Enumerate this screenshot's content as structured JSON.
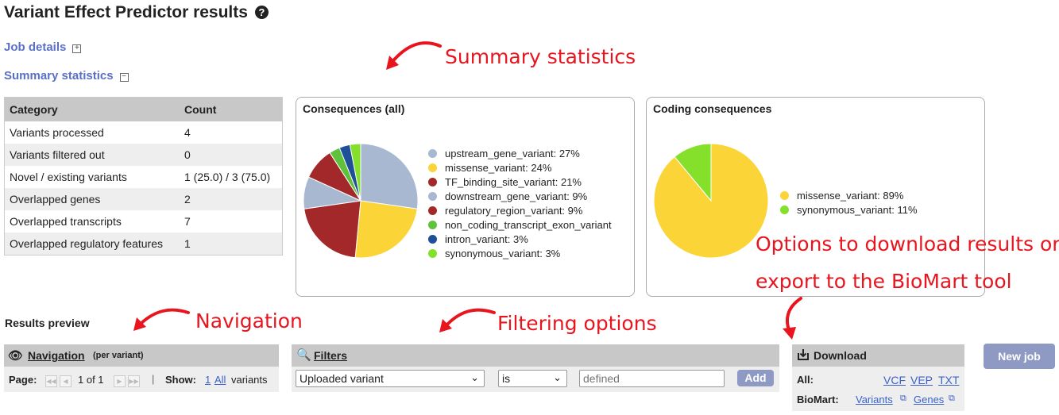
{
  "page_title": "Variant Effect Predictor results",
  "help_icon": "question-circle-icon",
  "sections": {
    "job_details": "Job details",
    "summary_statistics": "Summary statistics"
  },
  "stats_table": {
    "headers": [
      "Category",
      "Count"
    ],
    "rows": [
      [
        "Variants processed",
        "4"
      ],
      [
        "Variants filtered out",
        "0"
      ],
      [
        "Novel / existing variants",
        "1 (25.0) / 3 (75.0)"
      ],
      [
        "Overlapped genes",
        "2"
      ],
      [
        "Overlapped transcripts",
        "7"
      ],
      [
        "Overlapped regulatory features",
        "1"
      ]
    ]
  },
  "chart_data": [
    {
      "type": "pie",
      "title": "Consequences (all)",
      "series": [
        {
          "label": "upstream_gene_variant: 27%",
          "name": "upstream_gene_variant",
          "value": 27,
          "color": "#a8b8d0"
        },
        {
          "label": "missense_variant: 24%",
          "name": "missense_variant",
          "value": 24,
          "color": "#fbd437"
        },
        {
          "label": "TF_binding_site_variant: 21%",
          "name": "TF_binding_site_variant",
          "value": 21,
          "color": "#a3282a"
        },
        {
          "label": "downstream_gene_variant: 9%",
          "name": "downstream_gene_variant",
          "value": 9,
          "color": "#a8b8d0"
        },
        {
          "label": "regulatory_region_variant: 9%",
          "name": "regulatory_region_variant",
          "value": 9,
          "color": "#a3282a"
        },
        {
          "label": "non_coding_transcript_exon_variant",
          "name": "non_coding_transcript_exon_variant",
          "value": 3,
          "color": "#5fc13c"
        },
        {
          "label": "intron_variant: 3%",
          "name": "intron_variant",
          "value": 3,
          "color": "#1f4f96"
        },
        {
          "label": "synonymous_variant: 3%",
          "name": "synonymous_variant",
          "value": 3,
          "color": "#84e02a"
        }
      ]
    },
    {
      "type": "pie",
      "title": "Coding consequences",
      "series": [
        {
          "label": "missense_variant: 89%",
          "name": "missense_variant",
          "value": 89,
          "color": "#fbd437"
        },
        {
          "label": "synonymous_variant: 11%",
          "name": "synonymous_variant",
          "value": 11,
          "color": "#84e02a"
        }
      ]
    }
  ],
  "annotations": {
    "summary": "Summary statistics",
    "navigation": "Navigation",
    "filtering": "Filtering options",
    "download_line1": "Options to download results or",
    "download_line2": "export to the BioMart tool"
  },
  "results_preview": "Results preview",
  "navigation": {
    "title": "Navigation",
    "subtitle": "(per variant)",
    "page_label": "Page:",
    "page_info": "1 of 1",
    "show_label": "Show:",
    "show_one": "1",
    "show_all": "All",
    "show_suffix": "variants",
    "separator": "|"
  },
  "filters": {
    "title": "Filters",
    "field_value": "Uploaded variant",
    "operator_value": "is",
    "value_placeholder": "defined",
    "add_label": "Add"
  },
  "download": {
    "title": "Download",
    "all_label": "All:",
    "formats": [
      "VCF",
      "VEP",
      "TXT"
    ],
    "biomart_label": "BioMart:",
    "biomart_links": [
      "Variants",
      "Genes"
    ]
  },
  "new_job_label": "New job"
}
